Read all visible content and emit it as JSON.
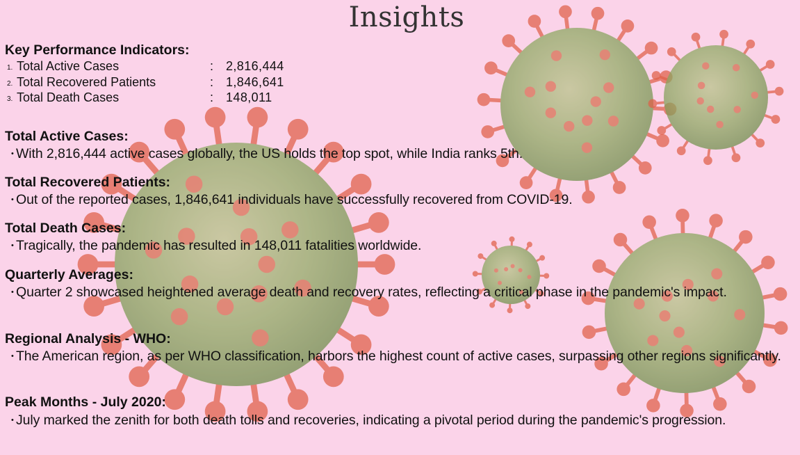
{
  "title": "Insights",
  "kpi": {
    "heading": "Key Performance Indicators:",
    "items": [
      {
        "num": "1.",
        "label": "Total Active Cases",
        "colon": ":",
        "value": "2,816,444"
      },
      {
        "num": "2.",
        "label": "Total Recovered Patients",
        "colon": ":",
        "value": "1,846,641"
      },
      {
        "num": "3.",
        "label": "Total Death Cases",
        "colon": ":",
        "value": "148,011"
      }
    ]
  },
  "bullet_char": "•",
  "sections": [
    {
      "heading": "Total Active Cases:",
      "text": "With 2,816,444 active cases globally, the US holds the top spot, while India ranks 5th."
    },
    {
      "heading": "Total Recovered Patients:",
      "text": "Out of the reported cases, 1,846,641 individuals have successfully recovered from COVID-19."
    },
    {
      "heading": "Total Death Cases:",
      "text": "Tragically, the pandemic has resulted in 148,011 fatalities worldwide."
    },
    {
      "heading": "Quarterly Averages:",
      "text": "Quarter 2 showcased heightened average death and recovery rates, reflecting a critical phase in the pandemic's impact."
    },
    {
      "heading": "Regional Analysis - WHO:",
      "text": "The American region, as per WHO classification, harbors the highest count of active cases, surpassing other regions significantly."
    },
    {
      "heading": "Peak Months - July 2020:",
      "text": "July marked the zenith for both death tolls and recoveries, indicating a pivotal period during the pandemic's progression."
    }
  ],
  "colors": {
    "background": "#fbd3e9",
    "virus_body": "#8faa62",
    "virus_spike": "#e06048",
    "title_text": "#333333"
  }
}
